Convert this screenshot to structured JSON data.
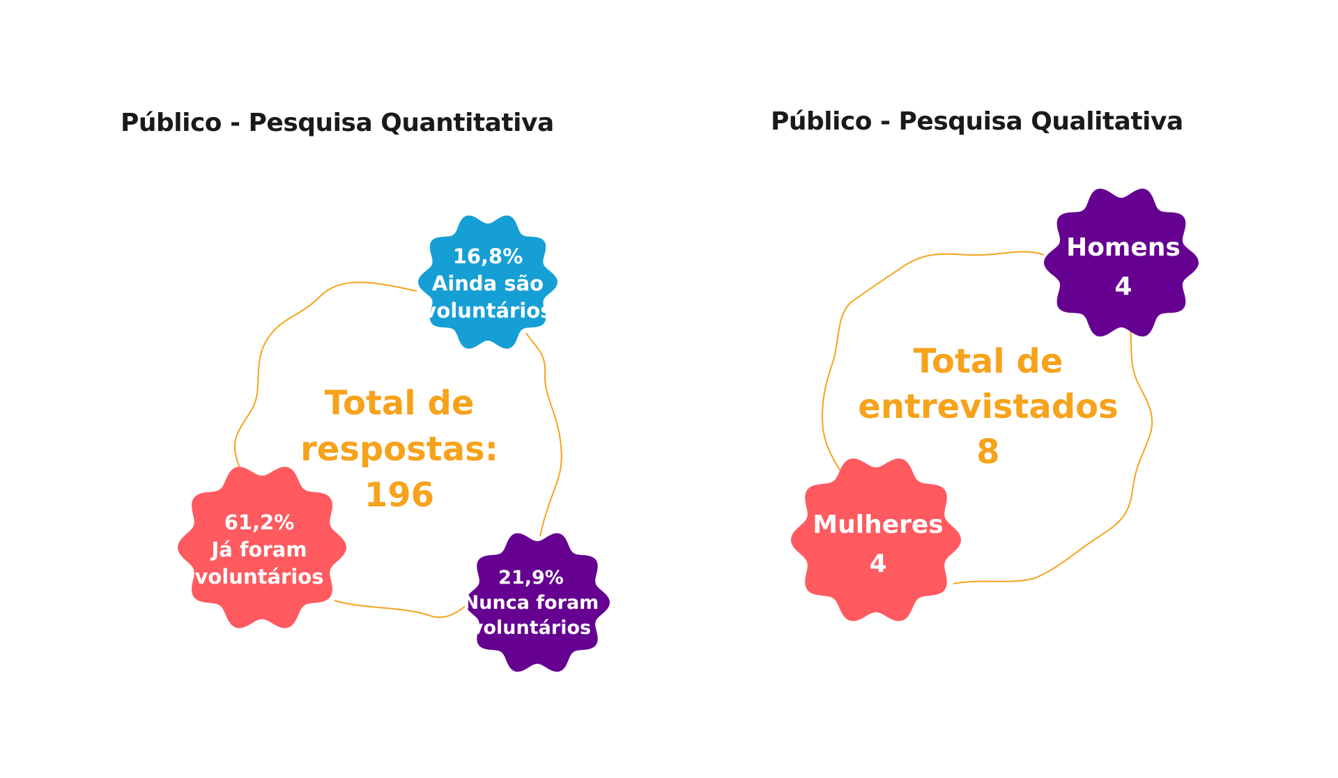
{
  "colors": {
    "orange": "#F7A21B",
    "blue": "#159FD5",
    "coral": "#FE5A5F",
    "purple": "#650090",
    "title": "#1a1a1a"
  },
  "quantitative": {
    "title": "Público - Pesquisa Quantitativa",
    "center_lines": [
      "Total de",
      "respostas:",
      "196"
    ],
    "badges": [
      {
        "lines": [
          "16,8%",
          "Ainda são",
          "voluntários"
        ],
        "color": "blue",
        "percent": 16.8
      },
      {
        "lines": [
          "61,2%",
          "Já foram",
          "voluntários"
        ],
        "color": "coral",
        "percent": 61.2
      },
      {
        "lines": [
          "21,9%",
          "Nunca foram",
          "voluntários"
        ],
        "color": "purple",
        "percent": 21.9
      }
    ]
  },
  "qualitative": {
    "title": "Público - Pesquisa Qualitativa",
    "center_lines": [
      "Total de",
      "entrevistados",
      "8"
    ],
    "badges": [
      {
        "lines": [
          "Homens",
          "4"
        ],
        "color": "purple"
      },
      {
        "lines": [
          "Mulheres",
          "4"
        ],
        "color": "coral"
      }
    ]
  }
}
